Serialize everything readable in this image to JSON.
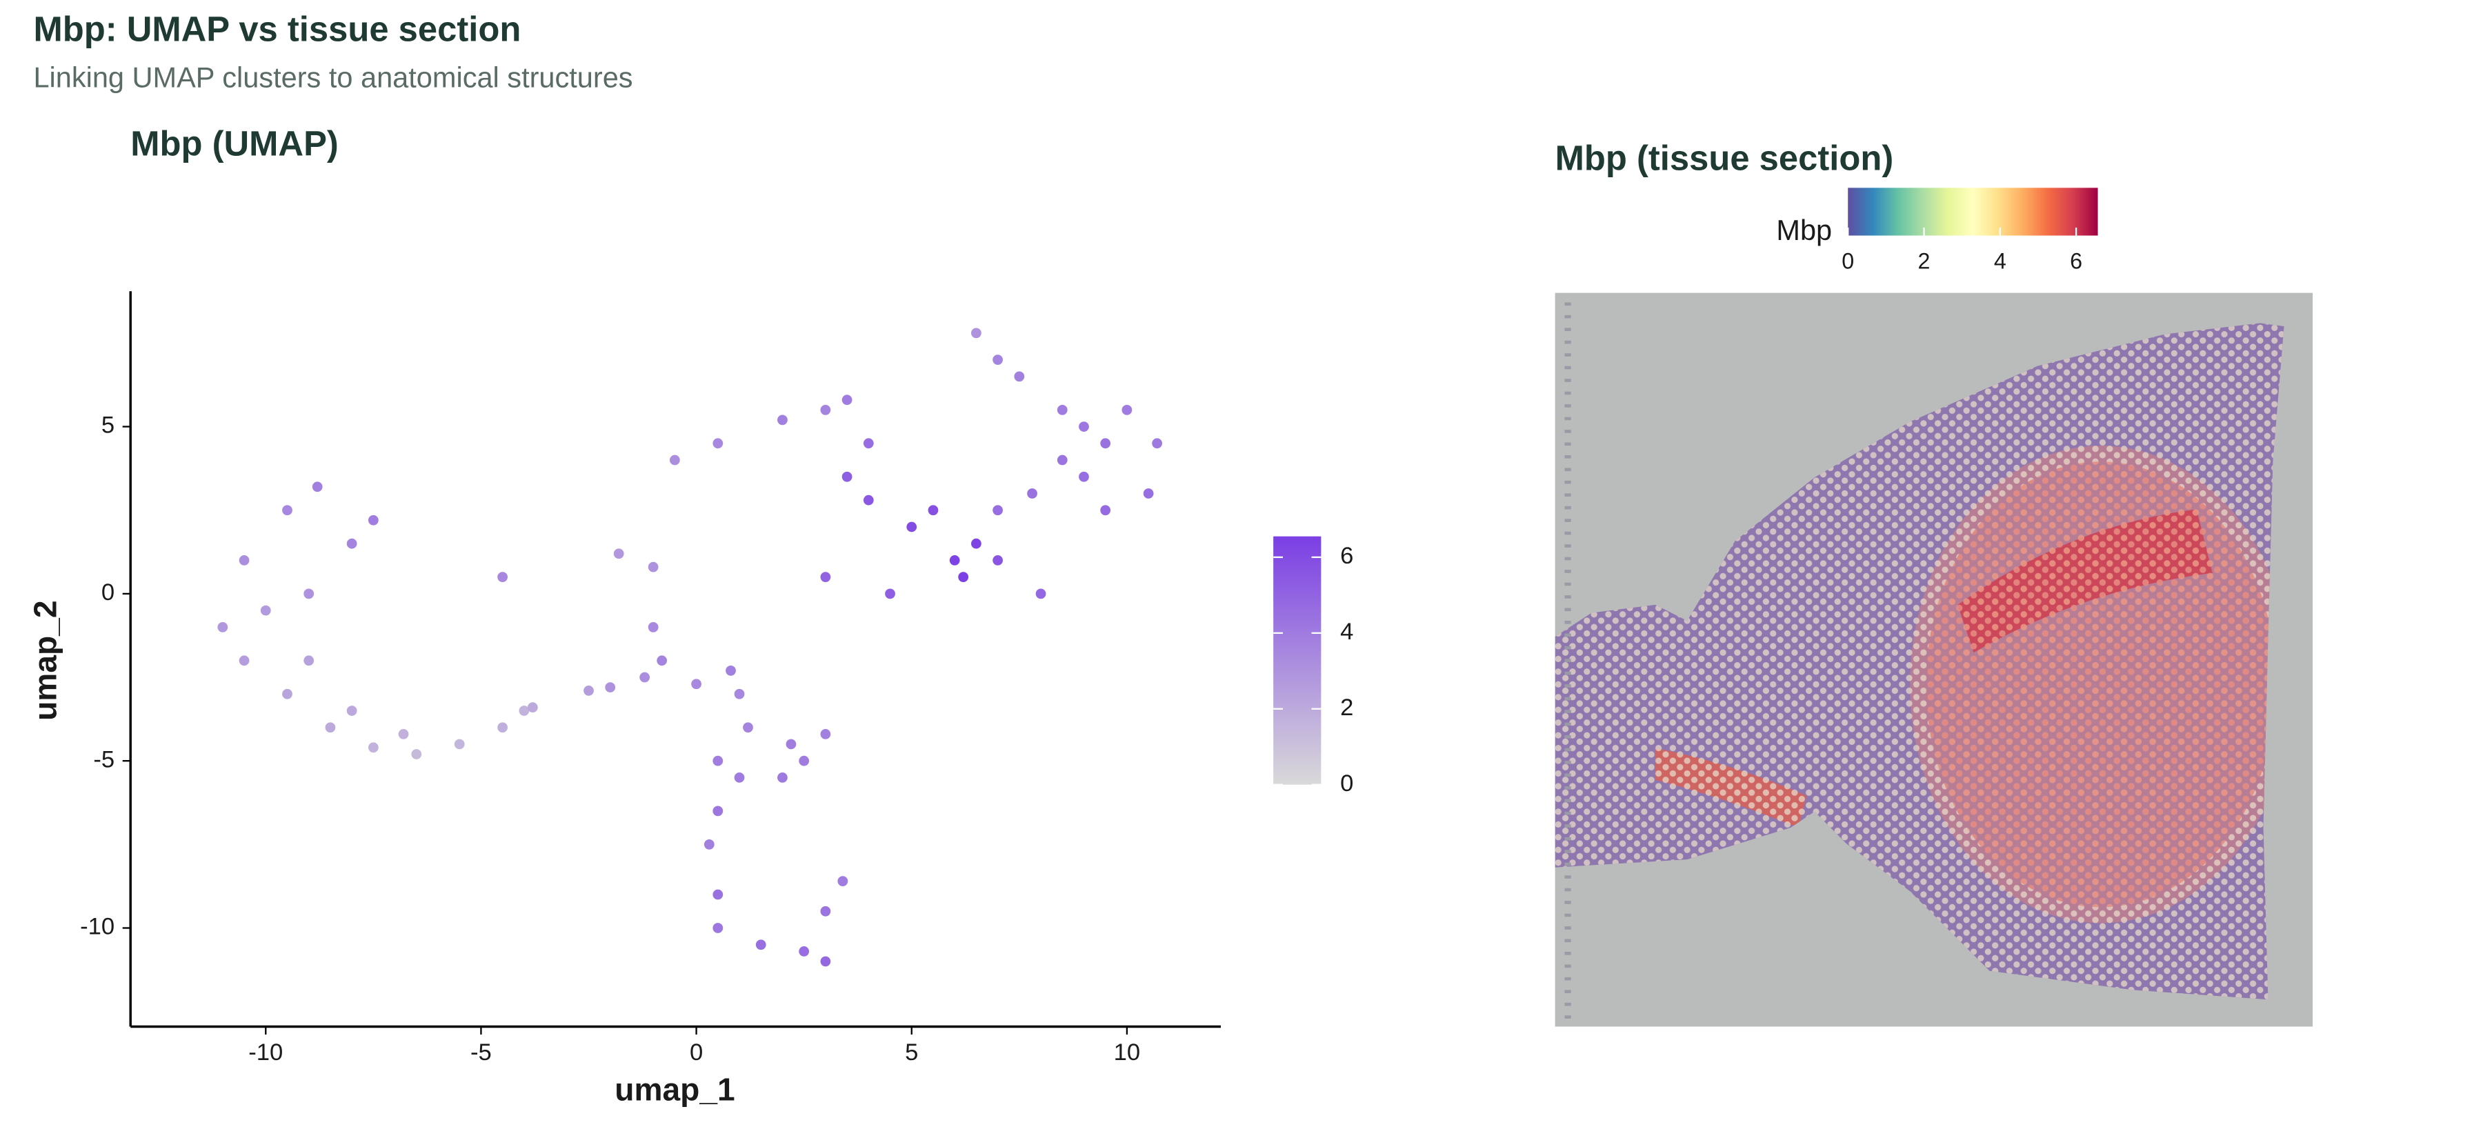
{
  "title": "Mbp: UMAP vs tissue section",
  "subtitle": "Linking UMAP clusters to anatomical structures",
  "chart_data": [
    {
      "type": "scatter",
      "title": "Mbp (UMAP)",
      "x_label": "umap_1",
      "y_label": "umap_2",
      "xlim": [
        -13.14,
        12.18
      ],
      "ylim": [
        -12.95,
        9.05
      ],
      "xticks": [
        -10,
        -5,
        0,
        5,
        10
      ],
      "yticks": [
        -10,
        -5,
        0,
        5
      ],
      "x": [
        -8.8,
        -9.5,
        -10.5,
        -11,
        -10.5,
        -9.5,
        -8.5,
        -7.5,
        -6.5,
        -5.5,
        -4.5,
        -4,
        -3.8,
        -7.5,
        -8,
        -9,
        -10,
        -9,
        -8,
        -6.8,
        -4.5,
        -0.5,
        0.5,
        2,
        3,
        3.5,
        4,
        3.5,
        4,
        5,
        6,
        6.5,
        5.5,
        7,
        8,
        4.5,
        3,
        7,
        7.8,
        8.5,
        9,
        10,
        10.7,
        10.5,
        9.5,
        9,
        8.5,
        7.5,
        6.5,
        7,
        9.5,
        6.2,
        -1.8,
        -1,
        -1,
        -0.8,
        -1.2,
        -2,
        -2.5,
        0,
        0.8,
        1,
        1.2,
        0.5,
        1,
        0.5,
        0.3,
        2,
        2.5,
        3,
        2.2,
        0.5,
        0.5,
        1.5,
        2.5,
        3,
        3,
        3.4
      ],
      "y": [
        3.2,
        2.5,
        1,
        -1,
        -2,
        -3,
        -4,
        -4.6,
        -4.8,
        -4.5,
        -4,
        -3.5,
        -3.4,
        2.2,
        1.5,
        0,
        -0.5,
        -2,
        -3.5,
        -4.2,
        0.5,
        4,
        4.5,
        5.2,
        5.5,
        5.8,
        4.5,
        3.5,
        2.8,
        2,
        1,
        1.5,
        2.5,
        1,
        0,
        0,
        0.5,
        2.5,
        3,
        4,
        5,
        5.5,
        4.5,
        3,
        2.5,
        3.5,
        5.5,
        6.5,
        7.8,
        7,
        4.5,
        0.5,
        1.2,
        0.8,
        -1,
        -2,
        -2.5,
        -2.8,
        -2.9,
        -2.7,
        -2.3,
        -3,
        -4,
        -5,
        -5.5,
        -6.5,
        -7.5,
        -5.5,
        -5,
        -4.2,
        -4.5,
        -9,
        -10,
        -10.5,
        -10.7,
        -11,
        -9.5,
        -8.6
      ],
      "values": [
        3.8,
        3.5,
        3.2,
        2.8,
        2.5,
        2.2,
        2,
        1.6,
        1.3,
        1.5,
        1.8,
        1.6,
        2.0,
        3.9,
        3.6,
        3.0,
        2.7,
        2.4,
        2.1,
        1.7,
        3.5,
        3.2,
        3.5,
        3.8,
        3.6,
        4.0,
        4.6,
        5.2,
        5.5,
        6.0,
        6.4,
        6.3,
        5.8,
        5.6,
        4.8,
        5.2,
        5.0,
        4.6,
        4.4,
        4.3,
        4.2,
        4.0,
        4.1,
        4.5,
        4.7,
        4.5,
        4.0,
        3.8,
        3.0,
        3.6,
        4.4,
        6.5,
        2.8,
        3.0,
        3.4,
        3.6,
        3.2,
        3.0,
        2.6,
        3.4,
        3.8,
        3.5,
        3.6,
        3.9,
        4.0,
        4.2,
        3.8,
        4.1,
        4.0,
        3.8,
        3.9,
        4.4,
        4.2,
        4.5,
        4.6,
        4.8,
        4.3,
        4.0
      ],
      "colorbar": {
        "lim": [
          0,
          6.55
        ],
        "ticks": [
          0,
          2,
          4,
          6
        ],
        "colors": [
          "#d9d9d9",
          "#7b3fe4"
        ]
      }
    },
    {
      "type": "image",
      "title": "Mbp (tissue section)",
      "colorbar": {
        "label": "Mbp",
        "lim": [
          0,
          6.57
        ],
        "ticks": [
          0,
          2,
          4,
          6
        ],
        "colors": [
          "#5e4fa2",
          "#3288bd",
          "#66c2a5",
          "#abdda4",
          "#e6f598",
          "#ffffbf",
          "#fee08b",
          "#fdae61",
          "#f46d43",
          "#d53e4f",
          "#9e0142"
        ]
      }
    }
  ]
}
